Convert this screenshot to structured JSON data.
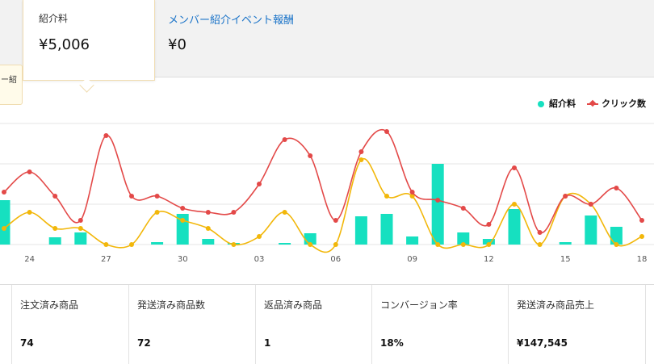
{
  "metric_cards": {
    "active": {
      "label": "紹介料",
      "value": "¥5,006"
    },
    "event": {
      "label": "メンバー紹介イベント報酬",
      "value": "¥0"
    }
  },
  "tooltip": {
    "text": "ー紹"
  },
  "legend": [
    {
      "label": "紹介料",
      "color": "#16e0c0",
      "icon": "bar-dot"
    },
    {
      "label": "クリック数",
      "color": "#e34948",
      "icon": "line-diamond"
    }
  ],
  "chart_data": {
    "type": "bar",
    "x_ticks": [
      "24",
      "27",
      "30",
      "03",
      "06",
      "09",
      "12",
      "15",
      "18"
    ],
    "series": [
      {
        "name": "紹介料",
        "type": "bar",
        "color": "#16e0c0",
        "values": [
          55,
          0,
          9,
          15,
          0,
          0,
          3,
          38,
          7,
          2,
          0,
          2,
          14,
          0,
          35,
          38,
          10,
          100,
          15,
          7,
          44,
          0,
          3,
          36,
          22,
          0
        ]
      },
      {
        "name": "クリック数",
        "type": "line",
        "color": "#e34948",
        "values": [
          13,
          18,
          12,
          6,
          27,
          12,
          12,
          9,
          8,
          8,
          15,
          26,
          22,
          6,
          23,
          28,
          13,
          11,
          9,
          5,
          19,
          3,
          12,
          10,
          14,
          6
        ]
      },
      {
        "name": "",
        "type": "line",
        "color": "#f2b70a",
        "values": [
          4,
          8,
          4,
          4,
          0,
          0,
          8,
          6,
          4,
          0,
          2,
          8,
          0,
          0,
          21,
          12,
          12,
          0,
          0,
          0,
          10,
          0,
          12,
          10,
          0,
          2
        ]
      }
    ]
  },
  "stats": [
    {
      "label": "",
      "value": ""
    },
    {
      "label": "注文済み商品",
      "value": "74"
    },
    {
      "label": "発送済み商品数",
      "value": "72"
    },
    {
      "label": "返品済み商品",
      "value": "1"
    },
    {
      "label": "コンバージョン率",
      "value": "18%"
    },
    {
      "label": "発送済み商品売上",
      "value": "¥147,545"
    },
    {
      "label": "",
      "value": ""
    }
  ]
}
